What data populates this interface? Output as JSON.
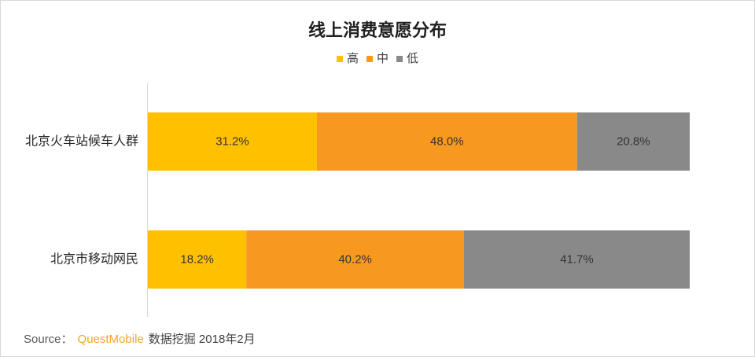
{
  "chart_data": {
    "type": "bar",
    "orientation": "horizontal",
    "stack_mode": "percent",
    "title": "线上消费意愿分布",
    "categories": [
      "北京火车站候车人群",
      "北京市移动网民"
    ],
    "series": [
      {
        "name": "高",
        "color": "#FFC000",
        "values": [
          31.2,
          18.2
        ],
        "labels": [
          "31.2%",
          "18.2%"
        ]
      },
      {
        "name": "中",
        "color": "#F7991E",
        "values": [
          48.0,
          40.2
        ],
        "labels": [
          "48.0%",
          "40.2%"
        ]
      },
      {
        "name": "低",
        "color": "#898989",
        "values": [
          20.8,
          41.7
        ],
        "labels": [
          "20.8%",
          "41.7%"
        ]
      }
    ],
    "xlim": [
      0,
      100
    ],
    "grid": false,
    "legend_position": "top"
  },
  "source": {
    "prefix": "Source：",
    "brand": "QuestMobile",
    "detail": "数据挖掘 2018年2月"
  },
  "colors": {
    "brand": "#F5A623"
  }
}
